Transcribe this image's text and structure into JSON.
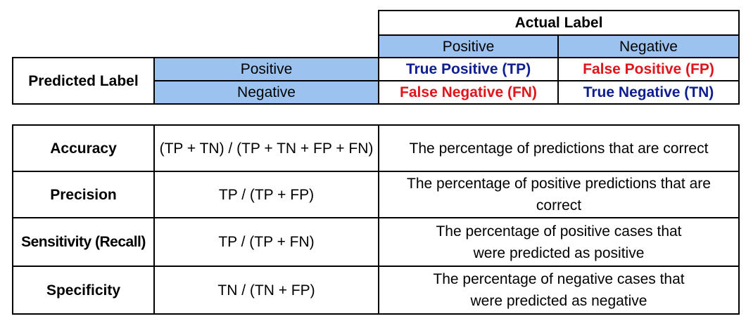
{
  "confusion_matrix": {
    "actual_label": "Actual Label",
    "predicted_label": "Predicted Label",
    "actual_positive": "Positive",
    "actual_negative": "Negative",
    "predicted_positive": "Positive",
    "predicted_negative": "Negative",
    "tp": "True Positive (TP)",
    "fp": "False Positive (FP)",
    "fn": "False Negative (FN)",
    "tn": "True Negative (TN)"
  },
  "metrics": [
    {
      "name": "Accuracy",
      "formula": "(TP + TN) / (TP + TN + FP + FN)",
      "description": "The percentage of predictions that are correct"
    },
    {
      "name": "Precision",
      "formula": "TP / (TP + FP)",
      "description": "The percentage of positive predictions that are correct"
    },
    {
      "name": "Sensitivity (Recall)",
      "formula": "TP / (TP + FN)",
      "description": "The percentage of positive cases that were predicted as positive"
    },
    {
      "name": "Specificity",
      "formula": "TN / (TN + FP)",
      "description": "The percentage of negative cases that were predicted as negative"
    }
  ],
  "colors": {
    "header_fill": "#9cc3f0",
    "true_text": "#0e1d8f",
    "false_text": "#e0141b"
  }
}
